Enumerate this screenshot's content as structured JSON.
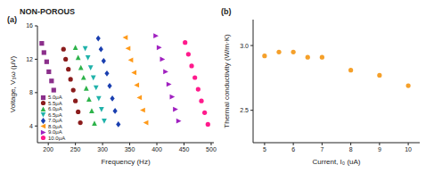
{
  "header": {
    "title": "NON-POROUS"
  },
  "chart_data": [
    {
      "type": "scatter",
      "title": "(a)",
      "x_label": "Frequency (Hz)",
      "y_label": "Voltage, V₃ω (μV)",
      "xlim": [
        180,
        505
      ],
      "xticks": [
        200,
        250,
        300,
        350,
        400,
        450,
        500
      ],
      "ylim": [
        2,
        16
      ],
      "yticks": [
        4,
        8,
        12,
        16
      ],
      "grid": false,
      "legend": "lower left",
      "series": [
        {
          "name": "5.0μA",
          "color": "#8b2f8b",
          "marker": "square",
          "x": [
            188,
            192,
            197,
            201,
            206,
            210
          ],
          "values": [
            13.9,
            12.8,
            11.7,
            10.5,
            9.4,
            8.3
          ]
        },
        {
          "name": "5.5μA",
          "color": "#8b1c1c",
          "marker": "circle",
          "x": [
            228,
            232,
            237,
            241,
            246,
            250,
            255,
            259
          ],
          "values": [
            13.2,
            12.0,
            10.8,
            9.6,
            8.3,
            7.0,
            5.7,
            4.4
          ]
        },
        {
          "name": "6.0μA",
          "color": "#2db34a",
          "marker": "triangle-up",
          "x": [
            250,
            255,
            260,
            265,
            270,
            275,
            280,
            285
          ],
          "values": [
            13.4,
            12.2,
            11.0,
            9.8,
            8.5,
            7.2,
            5.8,
            4.3
          ]
        },
        {
          "name": "6.5μA",
          "color": "#20b2aa",
          "marker": "triangle-down",
          "x": [
            268,
            273,
            278,
            283,
            288,
            293,
            298,
            303
          ],
          "values": [
            13.3,
            12.2,
            11.0,
            9.8,
            8.6,
            7.3,
            6.0,
            4.6
          ]
        },
        {
          "name": "7.0μA",
          "color": "#1a3fb0",
          "marker": "diamond",
          "x": [
            292,
            297,
            302,
            308,
            313,
            318,
            323,
            329
          ],
          "values": [
            14.5,
            13.2,
            11.8,
            10.3,
            8.8,
            7.3,
            5.8,
            4.2
          ]
        },
        {
          "name": "8.0μA",
          "color": "#ff9a1a",
          "marker": "triangle-left",
          "x": [
            342,
            347,
            352,
            358,
            363,
            368,
            374,
            380
          ],
          "values": [
            14.6,
            13.3,
            11.9,
            10.4,
            8.9,
            7.4,
            5.9,
            4.4
          ]
        },
        {
          "name": "9.0μA",
          "color": "#a020c0",
          "marker": "triangle-right",
          "x": [
            398,
            404,
            410,
            416,
            422,
            428,
            434,
            440
          ],
          "values": [
            14.8,
            13.4,
            12.0,
            10.5,
            9.0,
            7.5,
            6.0,
            4.6
          ]
        },
        {
          "name": "10.0μA",
          "color": "#ff1a8c",
          "marker": "circle",
          "x": [
            452,
            458,
            464,
            470,
            476,
            482,
            488,
            494
          ],
          "values": [
            14.0,
            12.6,
            11.2,
            9.8,
            8.4,
            7.0,
            5.6,
            4.2
          ]
        }
      ]
    },
    {
      "type": "scatter",
      "title": "(b)",
      "x_label": "Current, I₀ (uA)",
      "y_label": "Thermal conductivity (W/m·K)",
      "xlim": [
        4.6,
        10.4
      ],
      "xticks": [
        5,
        6,
        7,
        8,
        9,
        10
      ],
      "ylim": [
        2.25,
        3.2
      ],
      "yticks": [
        2.5,
        {
          "value": 3,
          "label": "3.0"
        }
      ],
      "grid": false,
      "color": "#f5a02a",
      "marker": "circle",
      "x": [
        5,
        5.5,
        6,
        6.5,
        7,
        8,
        9,
        10
      ],
      "values": [
        2.92,
        2.95,
        2.95,
        2.91,
        2.91,
        2.81,
        2.77,
        2.69
      ]
    }
  ]
}
